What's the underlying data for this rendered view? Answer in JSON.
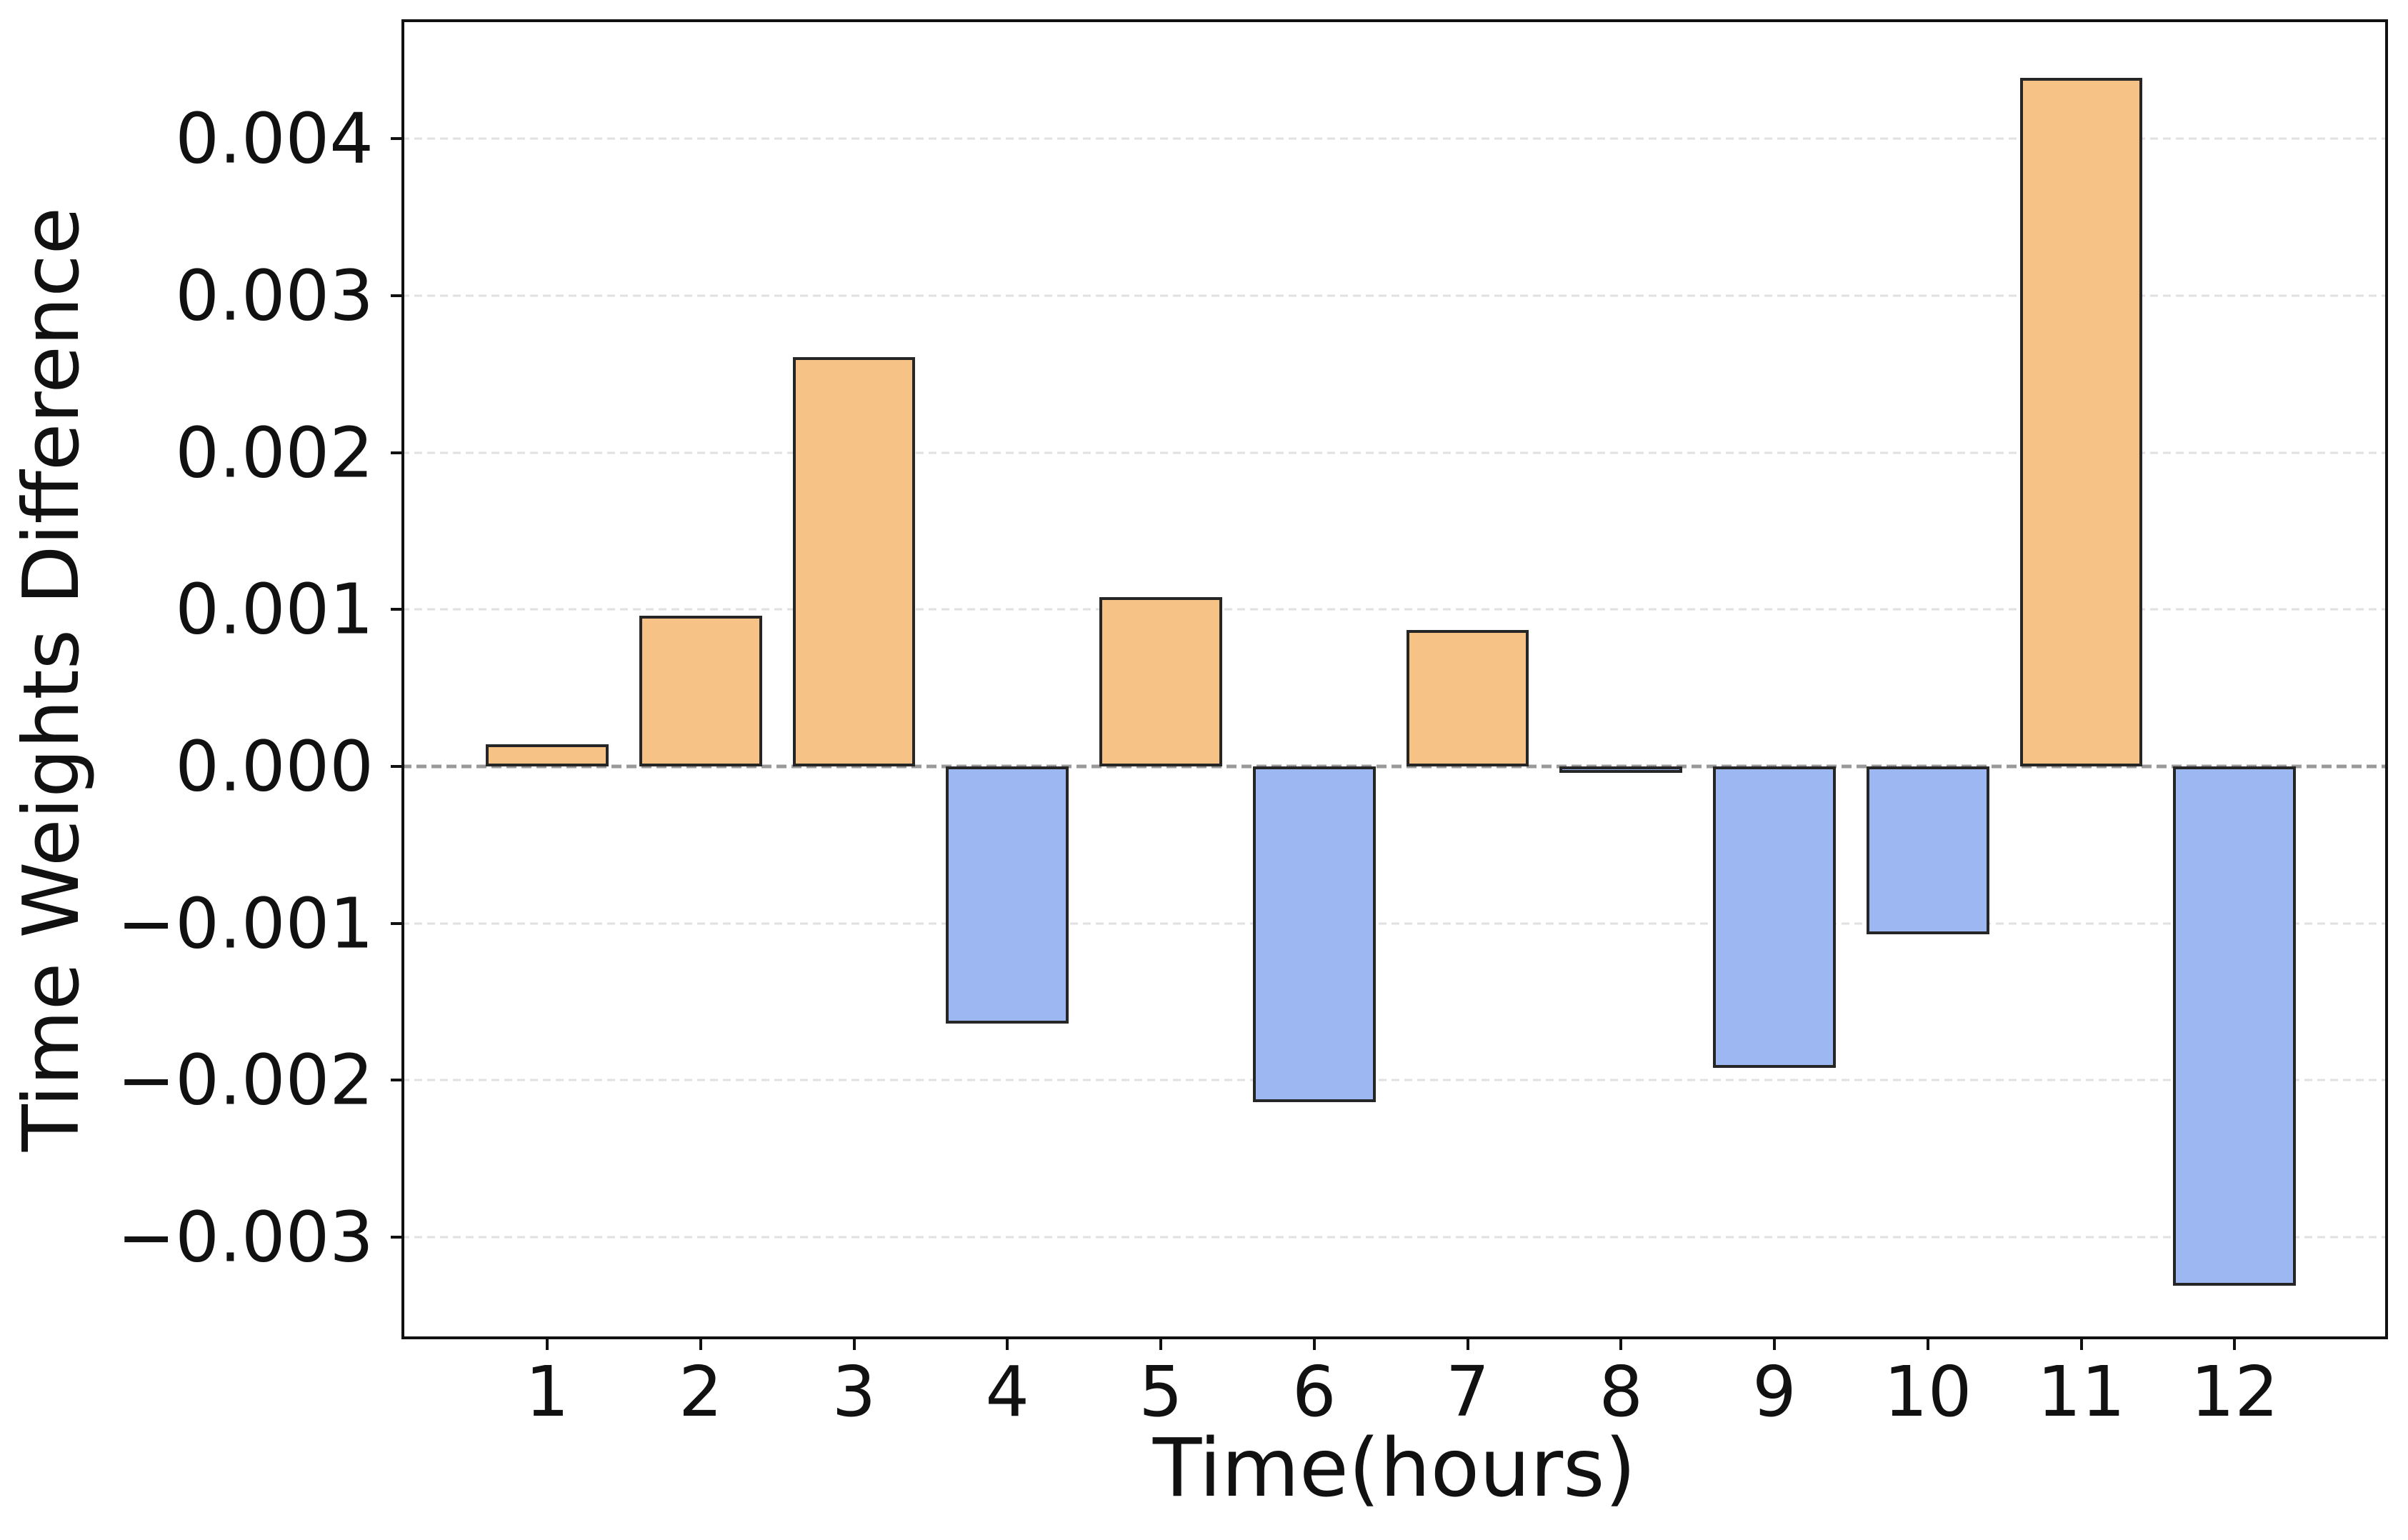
{
  "figure": {
    "background": "#ffffff"
  },
  "chart_data": {
    "type": "bar",
    "title": "",
    "xlabel": "Time(hours)",
    "ylabel": "Time Weights Difference",
    "categories": [
      "1",
      "2",
      "3",
      "4",
      "5",
      "6",
      "7",
      "8",
      "9",
      "10",
      "11",
      "12"
    ],
    "x": [
      1,
      2,
      3,
      4,
      5,
      6,
      7,
      8,
      9,
      10,
      11,
      12
    ],
    "values": [
      0.00014,
      0.00096,
      0.00261,
      -0.00164,
      0.00108,
      -0.00214,
      0.00087,
      -4e-05,
      -0.00192,
      -0.00107,
      0.00439,
      -0.00331
    ],
    "bar_width": 0.8,
    "xlim": [
      0.05,
      13.0
    ],
    "ylim": [
      -0.003651,
      0.004761
    ],
    "yticks": [
      {
        "value": 0.004,
        "label": "0.004"
      },
      {
        "value": 0.003,
        "label": "0.003"
      },
      {
        "value": 0.002,
        "label": "0.002"
      },
      {
        "value": 0.001,
        "label": "0.001"
      },
      {
        "value": 0.0,
        "label": "0.000"
      },
      {
        "value": -0.001,
        "label": "−0.001"
      },
      {
        "value": -0.002,
        "label": "−0.002"
      },
      {
        "value": -0.003,
        "label": "−0.003"
      }
    ],
    "grid": {
      "show": true,
      "color": "#e1e1e1",
      "zero_line_color": "#999999",
      "style": "dashed"
    },
    "colors": {
      "positive_fill": "#F6C286",
      "negative_fill": "#9CB7F2",
      "bar_edge": "#262626",
      "spine": "#111111",
      "text": "#111111"
    },
    "legend": null
  }
}
